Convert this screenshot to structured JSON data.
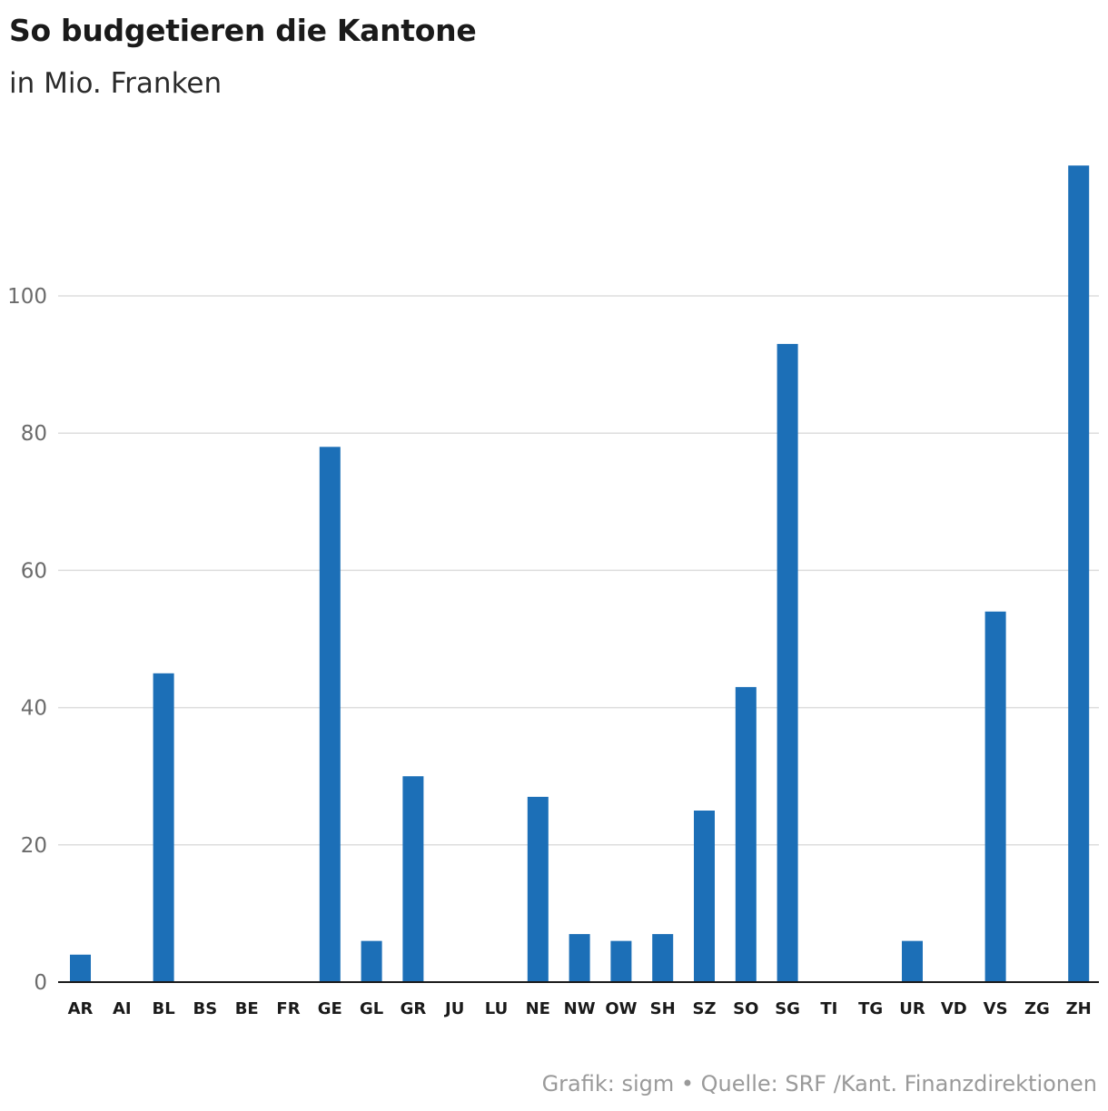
{
  "header": {
    "title": "So budgetieren die Kantone",
    "subtitle": "in Mio. Franken"
  },
  "footer": {
    "credit": "Grafik: sigm • Quelle: SRF /Kant. Finanzdirektionen"
  },
  "colors": {
    "bar": "#1c6fb7",
    "grid": "#dddddd",
    "axis": "#1a1a1a"
  },
  "chart_data": {
    "type": "bar",
    "title": "So budgetieren die Kantone",
    "subtitle": "in Mio. Franken",
    "xlabel": "",
    "ylabel": "",
    "categories": [
      "AR",
      "AI",
      "BL",
      "BS",
      "BE",
      "FR",
      "GE",
      "GL",
      "GR",
      "JU",
      "LU",
      "NE",
      "NW",
      "OW",
      "SH",
      "SZ",
      "SO",
      "SG",
      "TI",
      "TG",
      "UR",
      "VD",
      "VS",
      "ZG",
      "ZH"
    ],
    "values": [
      4,
      0,
      45,
      0,
      0,
      0,
      78,
      6,
      30,
      0,
      0,
      27,
      7,
      6,
      7,
      25,
      43,
      93,
      0,
      0,
      6,
      0,
      54,
      0,
      119
    ],
    "ylim": [
      0,
      119
    ],
    "yticks": [
      0,
      20,
      40,
      60,
      80,
      100
    ],
    "grid": true,
    "legend": "none"
  }
}
